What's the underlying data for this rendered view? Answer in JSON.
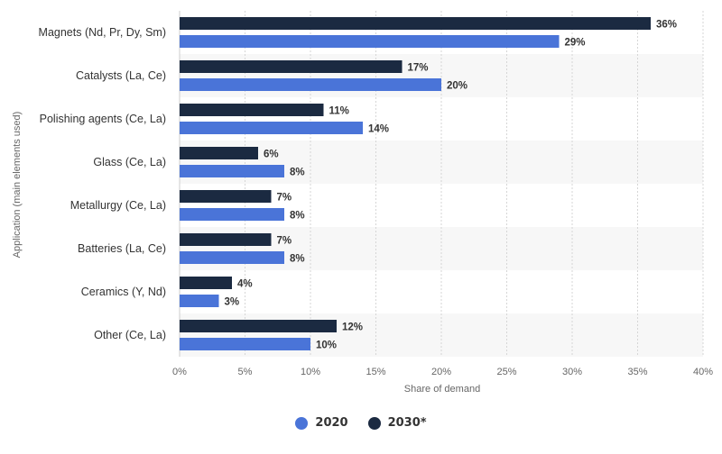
{
  "chart_data": {
    "type": "bar",
    "orientation": "horizontal",
    "categories": [
      "Magnets (Nd, Pr, Dy, Sm)",
      "Catalysts (La, Ce)",
      "Polishing agents (Ce, La)",
      "Glass (Ce, La)",
      "Metallurgy (Ce, La)",
      "Batteries (La, Ce)",
      "Ceramics (Y, Nd)",
      "Other (Ce, La)"
    ],
    "series": [
      {
        "name": "2030*",
        "values": [
          36,
          17,
          11,
          6,
          7,
          7,
          4,
          12
        ],
        "labels": [
          "36%",
          "17%",
          "11%",
          "6%",
          "7%",
          "7%",
          "4%",
          "12%"
        ],
        "color": "#1b2a41"
      },
      {
        "name": "2020",
        "values": [
          29,
          20,
          14,
          8,
          8,
          8,
          3,
          10
        ],
        "labels": [
          "29%",
          "20%",
          "14%",
          "8%",
          "8%",
          "8%",
          "3%",
          "10%"
        ],
        "color": "#4a74d8"
      }
    ],
    "xlabel": "Share of demand",
    "ylabel": "Application (main elements used)",
    "xlim": [
      0,
      40
    ],
    "xticks": [
      0,
      5,
      10,
      15,
      20,
      25,
      30,
      35,
      40
    ],
    "xtick_labels": [
      "0%",
      "5%",
      "10%",
      "15%",
      "20%",
      "25%",
      "30%",
      "35%",
      "40%"
    ],
    "grid": true,
    "legend_position": "bottom-center",
    "legend": [
      {
        "name": "2020",
        "color": "#4a74d8"
      },
      {
        "name": "2030*",
        "color": "#1b2a41"
      }
    ]
  }
}
